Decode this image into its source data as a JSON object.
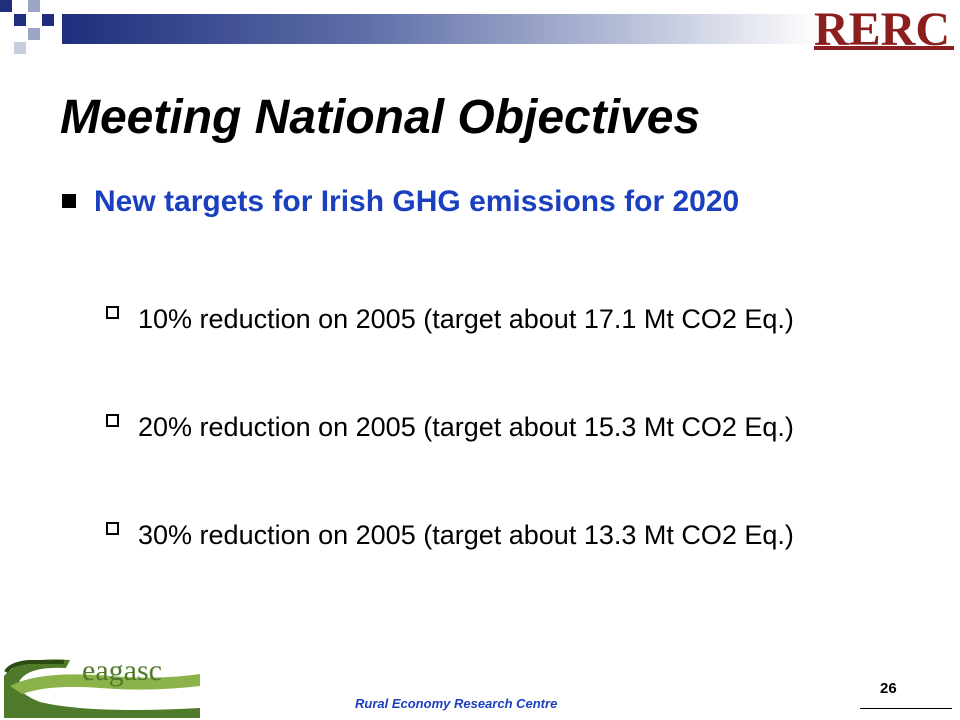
{
  "header": {
    "logo_text": "RERC",
    "colors": {
      "brand_red": "#8b1e1e",
      "bar_dark": "#1f2e7d"
    }
  },
  "slide": {
    "title": "Meeting National Objectives",
    "bullet": "New targets for Irish GHG emissions for 2020",
    "subbullets": [
      "10% reduction on 2005 (target about 17.1 Mt CO2 Eq.)",
      "20% reduction on 2005 (target about 15.3 Mt CO2 Eq.)",
      "30% reduction on 2005 (target about 13.3 Mt CO2 Eq.)"
    ],
    "colors": {
      "bullet_text": "#1a3fbf"
    }
  },
  "footer": {
    "org": "Rural Economy Research Centre",
    "page_number": "26",
    "logo_text": "eagasc"
  }
}
